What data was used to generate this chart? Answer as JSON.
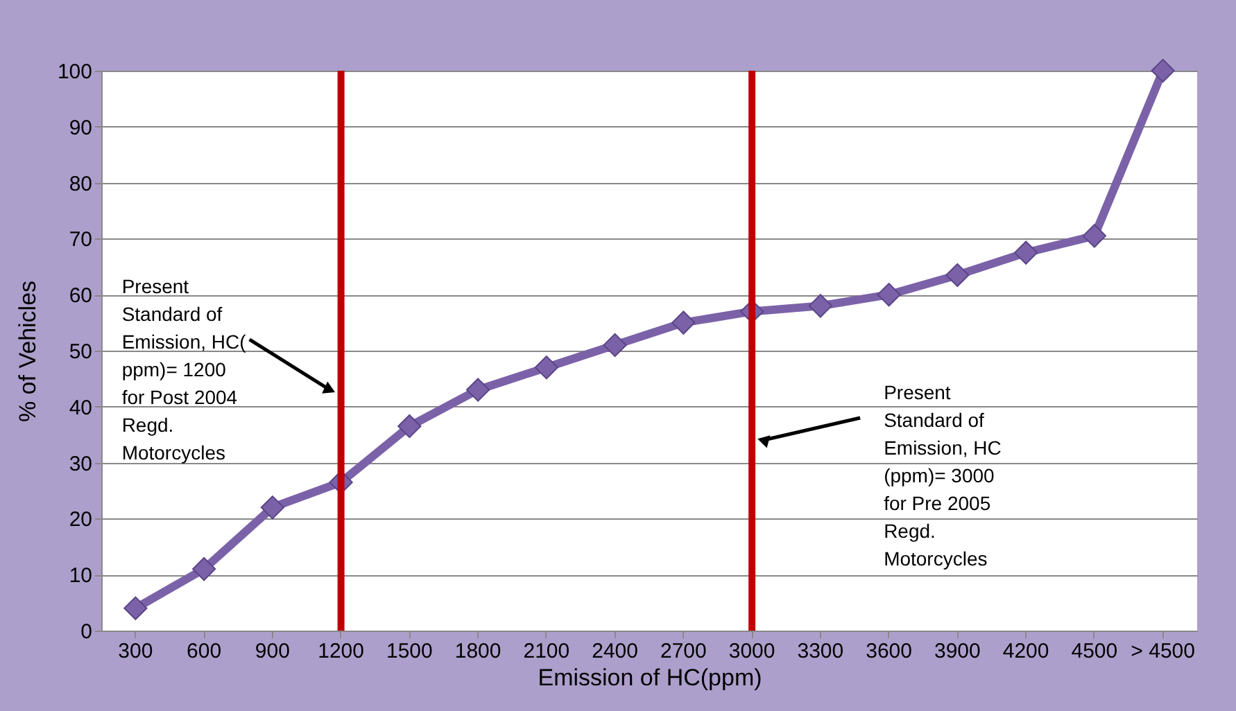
{
  "chart_data": {
    "type": "line",
    "xlabel": "Emission of  HC(ppm)",
    "ylabel": "% of Vehicles",
    "categories": [
      "300",
      "600",
      "900",
      "1200",
      "1500",
      "1800",
      "2100",
      "2400",
      "2700",
      "3000",
      "3300",
      "3600",
      "3900",
      "4200",
      "4500",
      "> 4500"
    ],
    "series": [
      {
        "color": "#7b62a8",
        "values": [
          4,
          11,
          22,
          26.5,
          36.5,
          43,
          47,
          51,
          55,
          57,
          58,
          60,
          63.5,
          67.5,
          70.5,
          100
        ]
      }
    ],
    "ylim": [
      0,
      100
    ],
    "yticks": [
      0,
      10,
      20,
      30,
      40,
      50,
      60,
      70,
      80,
      90,
      100
    ],
    "grid": "y",
    "marker": "diamond",
    "line_style": "solid",
    "ref_lines": [
      {
        "axis": "x",
        "value": "1200",
        "color": "#c00000"
      },
      {
        "axis": "x",
        "value": "3000",
        "color": "#c00000"
      }
    ],
    "annotations": [
      {
        "text": "Present Standard of Emission, HC( ppm)= 1200 for Post 2004 Regd. Motorcycles",
        "x": "1200",
        "y": 43
      },
      {
        "text": "Present Standard of Emission, HC (ppm)= 3000 for Pre 2005 Regd. Motorcycles",
        "x": "3000",
        "y": 34
      }
    ]
  }
}
